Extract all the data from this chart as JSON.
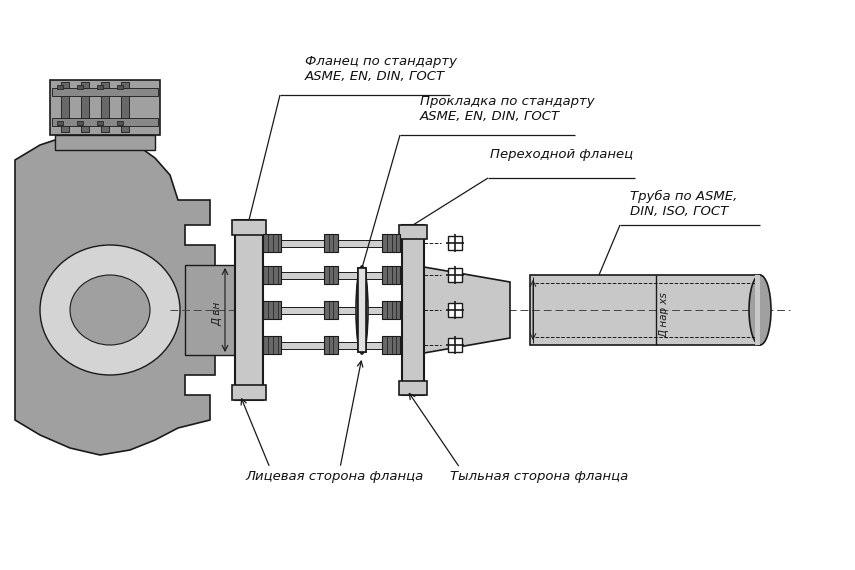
{
  "bg_color": "#ffffff",
  "line_color": "#1a1a1a",
  "fill_light": "#c8c8c8",
  "fill_mid": "#a0a0a0",
  "fill_dark": "#686868",
  "annotations": {
    "flange_std": "Фланец по стандарту\nASME, EN, DIN, ГОСТ",
    "gasket_std": "Прокладка по стандарту\nASME, EN, DIN, ГОСТ",
    "transition_flange": "Переходной фланец",
    "pipe_std": "Труба по ASME,\nDIN, ISO, ГОСТ",
    "face_side": "Лицевая сторона фланца",
    "back_side": "Тыльная сторона фланца",
    "d_outer": "Д вн",
    "d_inner": "Д нар xs"
  },
  "figsize": [
    8.55,
    5.7
  ],
  "dpi": 100
}
